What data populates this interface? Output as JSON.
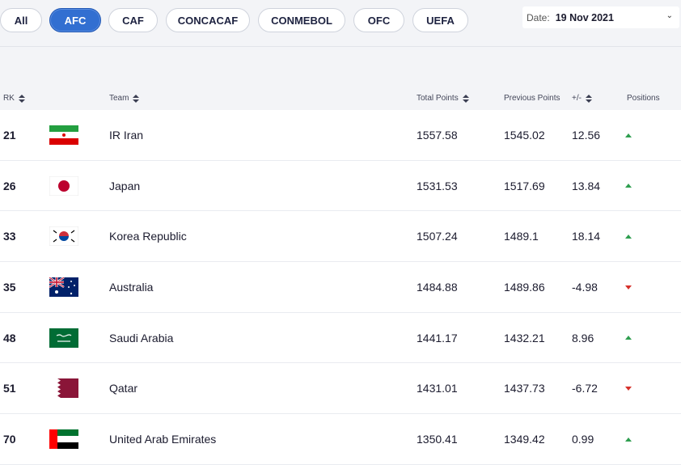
{
  "filters": [
    "All",
    "AFC",
    "CAF",
    "CONCACAF",
    "CONMEBOL",
    "OFC",
    "UEFA"
  ],
  "active_filter": "AFC",
  "date": {
    "label": "Date:",
    "value": "19 Nov 2021"
  },
  "columns": {
    "rank": "RK",
    "team": "Team",
    "total": "Total Points",
    "previous": "Previous Points",
    "diff": "+/-",
    "positions": "Positions"
  },
  "rows": [
    {
      "rank": "21",
      "team": "IR Iran",
      "flag": "iran-flag",
      "total": "1557.58",
      "previous": "1545.02",
      "diff": "12.56",
      "trend": "up"
    },
    {
      "rank": "26",
      "team": "Japan",
      "flag": "japan-flag",
      "total": "1531.53",
      "previous": "1517.69",
      "diff": "13.84",
      "trend": "up"
    },
    {
      "rank": "33",
      "team": "Korea Republic",
      "flag": "korea-flag",
      "total": "1507.24",
      "previous": "1489.1",
      "diff": "18.14",
      "trend": "up"
    },
    {
      "rank": "35",
      "team": "Australia",
      "flag": "australia-flag",
      "total": "1484.88",
      "previous": "1489.86",
      "diff": "-4.98",
      "trend": "down"
    },
    {
      "rank": "48",
      "team": "Saudi Arabia",
      "flag": "saudi-flag",
      "total": "1441.17",
      "previous": "1432.21",
      "diff": "8.96",
      "trend": "up"
    },
    {
      "rank": "51",
      "team": "Qatar",
      "flag": "qatar-flag",
      "total": "1431.01",
      "previous": "1437.73",
      "diff": "-6.72",
      "trend": "down"
    },
    {
      "rank": "70",
      "team": "United Arab Emirates",
      "flag": "uae-flag",
      "total": "1350.41",
      "previous": "1349.42",
      "diff": "0.99",
      "trend": "up"
    }
  ],
  "colors": {
    "accent": "#326fd1",
    "up": "#2e9e4f",
    "down": "#d6312b"
  }
}
